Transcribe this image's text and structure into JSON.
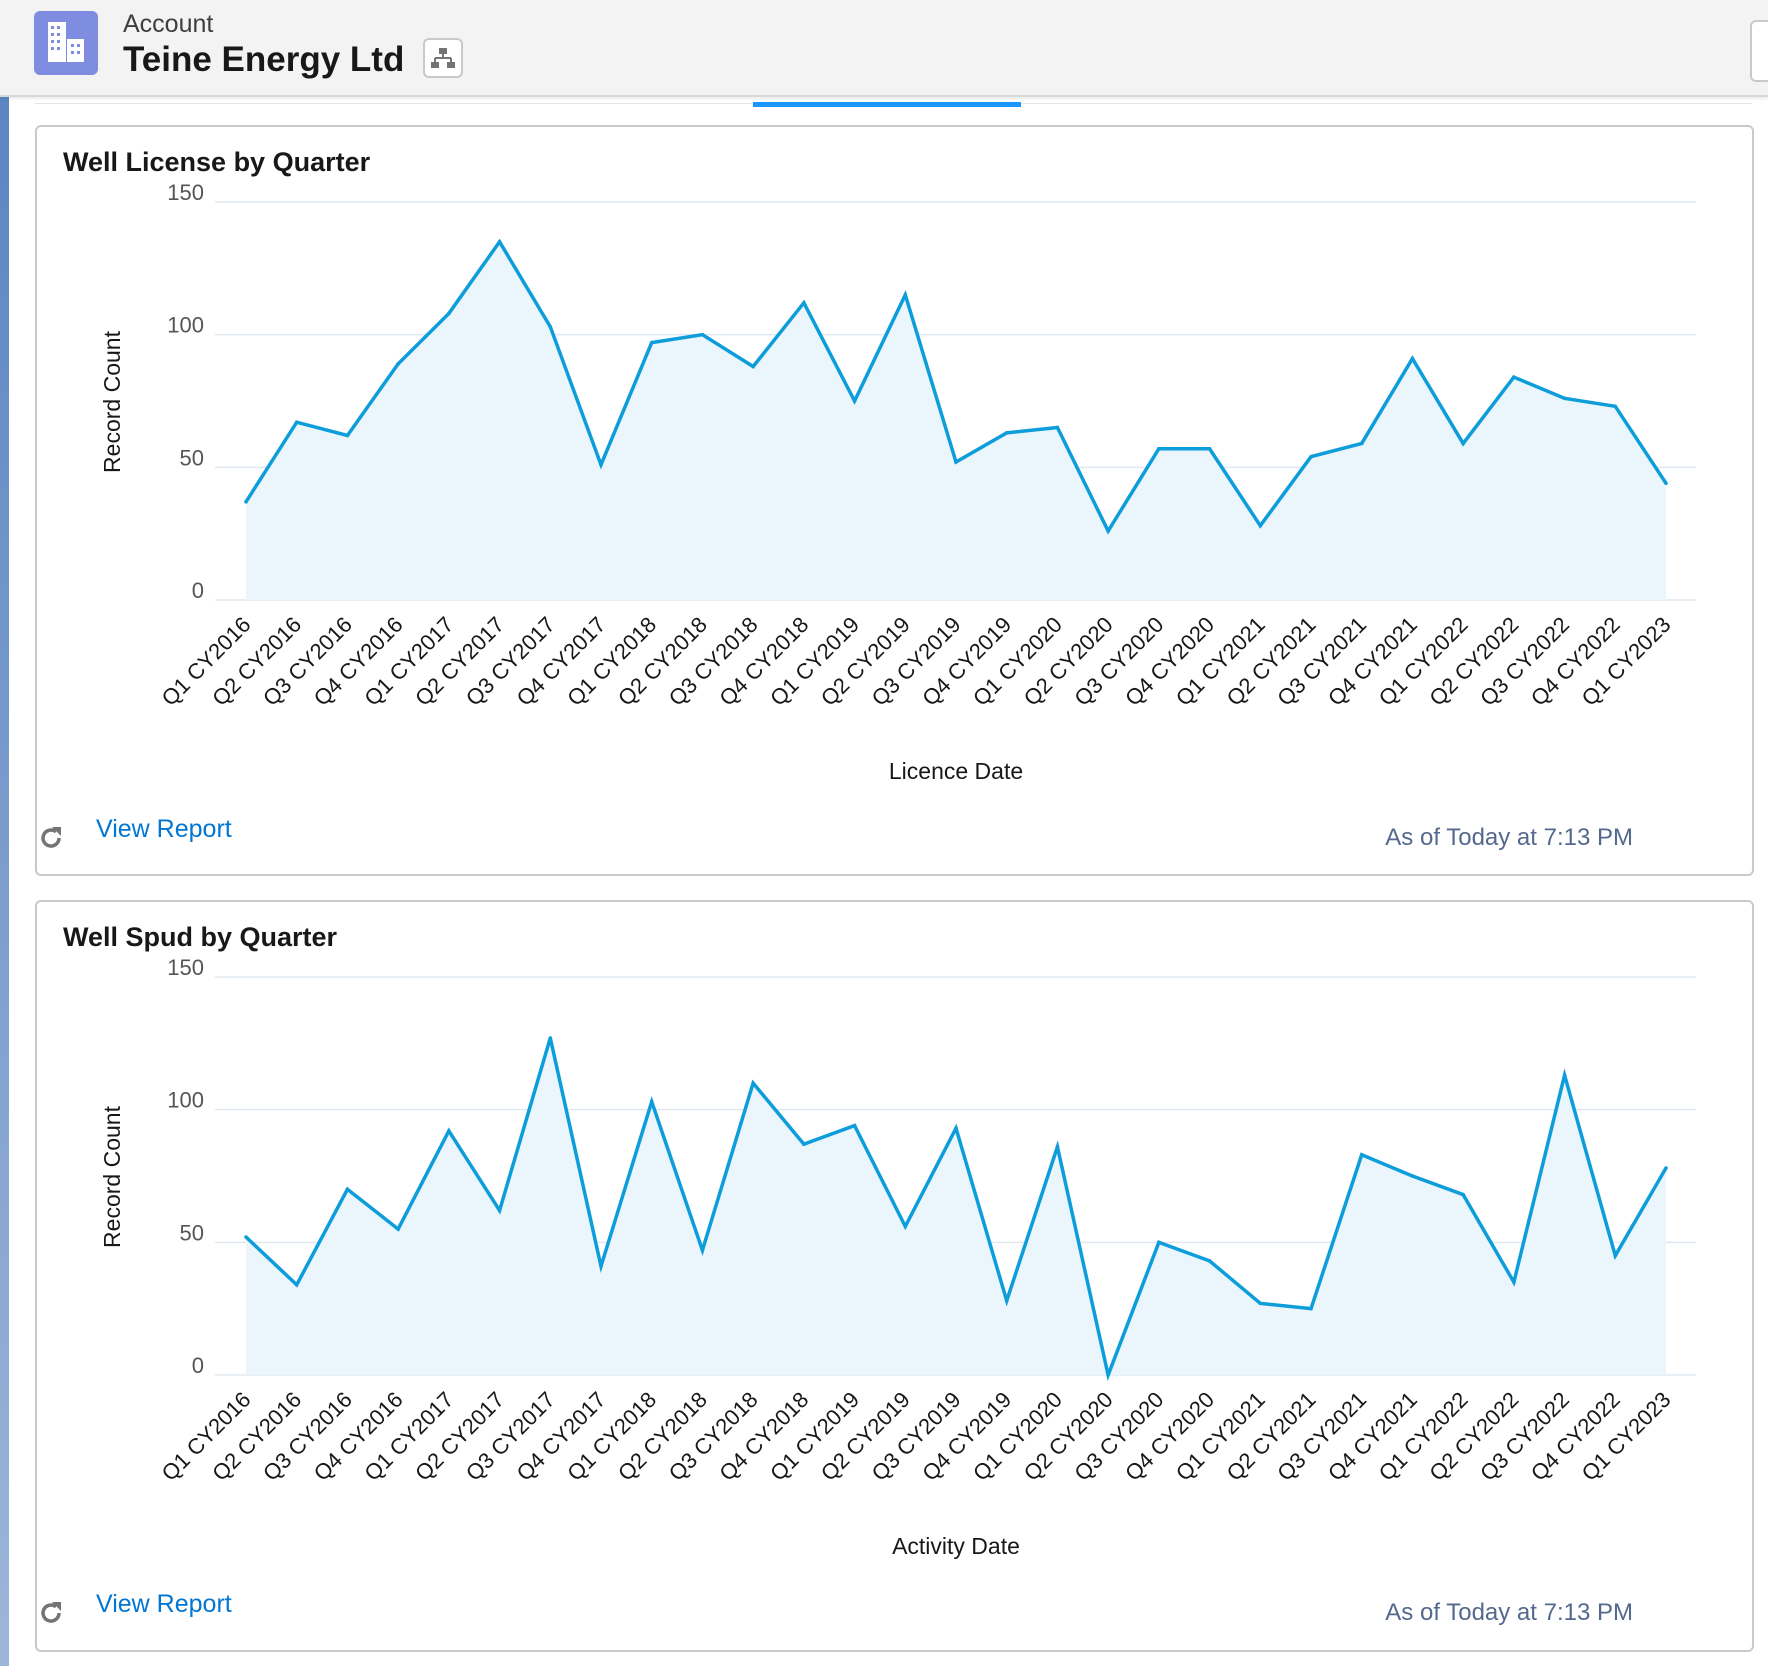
{
  "header": {
    "object_label": "Account",
    "record_title": "Teine Energy Ltd",
    "icon": "account-building-icon",
    "hierarchy_icon": "hierarchy-icon"
  },
  "colors": {
    "line": "#0d9dda",
    "fill": "#eaf5fc",
    "grid": "#dfe8f0",
    "link": "#0176d3",
    "accent_tab": "#1b96ff"
  },
  "cards": [
    {
      "title": "Well License by Quarter",
      "view_report": "View Report",
      "as_of": "As of Today at 7:13 PM",
      "refresh_icon": "refresh-icon"
    },
    {
      "title": "Well Spud by Quarter",
      "view_report": "View Report",
      "as_of": "As of Today at 7:13 PM",
      "refresh_icon": "refresh-icon"
    }
  ],
  "chart_data": [
    {
      "type": "area",
      "title": "Well License by Quarter",
      "xlabel": "Licence Date",
      "ylabel": "Record Count",
      "ylim": [
        0,
        150
      ],
      "yticks": [
        "0",
        "50",
        "100",
        "150"
      ],
      "grid": true,
      "categories": [
        "Q1 CY2016",
        "Q2 CY2016",
        "Q3 CY2016",
        "Q4 CY2016",
        "Q1 CY2017",
        "Q2 CY2017",
        "Q3 CY2017",
        "Q4 CY2017",
        "Q1 CY2018",
        "Q2 CY2018",
        "Q3 CY2018",
        "Q4 CY2018",
        "Q1 CY2019",
        "Q2 CY2019",
        "Q3 CY2019",
        "Q4 CY2019",
        "Q1 CY2020",
        "Q2 CY2020",
        "Q3 CY2020",
        "Q4 CY2020",
        "Q1 CY2021",
        "Q2 CY2021",
        "Q3 CY2021",
        "Q4 CY2021",
        "Q1 CY2022",
        "Q2 CY2022",
        "Q3 CY2022",
        "Q4 CY2022",
        "Q1 CY2023"
      ],
      "values": [
        37,
        67,
        62,
        89,
        108,
        135,
        103,
        51,
        97,
        100,
        88,
        112,
        75,
        115,
        52,
        63,
        65,
        26,
        57,
        57,
        28,
        54,
        59,
        91,
        59,
        84,
        76,
        73,
        44
      ]
    },
    {
      "type": "area",
      "title": "Well Spud by Quarter",
      "xlabel": "Activity Date",
      "ylabel": "Record Count",
      "ylim": [
        0,
        150
      ],
      "yticks": [
        "0",
        "50",
        "100",
        "150"
      ],
      "grid": true,
      "categories": [
        "Q1 CY2016",
        "Q2 CY2016",
        "Q3 CY2016",
        "Q4 CY2016",
        "Q1 CY2017",
        "Q2 CY2017",
        "Q3 CY2017",
        "Q4 CY2017",
        "Q1 CY2018",
        "Q2 CY2018",
        "Q3 CY2018",
        "Q4 CY2018",
        "Q1 CY2019",
        "Q2 CY2019",
        "Q3 CY2019",
        "Q4 CY2019",
        "Q1 CY2020",
        "Q2 CY2020",
        "Q3 CY2020",
        "Q4 CY2020",
        "Q1 CY2021",
        "Q2 CY2021",
        "Q3 CY2021",
        "Q4 CY2021",
        "Q1 CY2022",
        "Q2 CY2022",
        "Q3 CY2022",
        "Q4 CY2022",
        "Q1 CY2023"
      ],
      "values": [
        52,
        34,
        70,
        55,
        92,
        62,
        127,
        41,
        103,
        47,
        110,
        87,
        94,
        56,
        93,
        28,
        86,
        0,
        50,
        43,
        27,
        25,
        83,
        75,
        68,
        35,
        113,
        45,
        78
      ]
    }
  ]
}
